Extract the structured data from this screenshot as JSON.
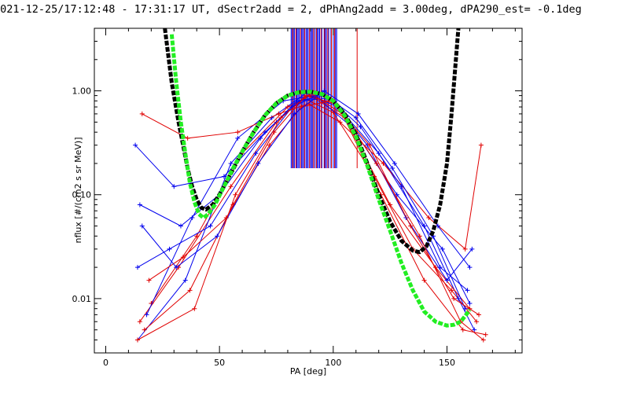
{
  "chart_data": {
    "type": "line",
    "title": "2021-12-25/17:12:48 - 17:31:17 UT, dSectr2add = 2, dPhAng2add = 3.00deg, dPA290_est=  -0.1deg",
    "xlabel": "PA [deg]",
    "ylabel": "nflux [#/(cm2 s sr MeV)]",
    "xlim": [
      -5,
      183
    ],
    "ylim": [
      0.003,
      4.0
    ],
    "yscale": "log",
    "grid": false,
    "x_ticks": [
      {
        "value": 0,
        "label": "0"
      },
      {
        "value": 50,
        "label": "50"
      },
      {
        "value": 100,
        "label": "100"
      },
      {
        "value": 150,
        "label": "150"
      }
    ],
    "y_ticks": [
      {
        "value": 0.01,
        "label": "0.01"
      },
      {
        "value": 0.1,
        "label": "0.10"
      },
      {
        "value": 1.0,
        "label": "1.00"
      }
    ],
    "colors": {
      "red": "#e00000",
      "blue": "#0000ee",
      "black": "#000000",
      "green": "#22ee22"
    },
    "series": [
      {
        "color": "red",
        "style": "line+plus",
        "x": [
          15,
          32,
          55,
          75,
          87,
          100,
          118,
          135,
          152,
          163
        ],
        "y": [
          0.006,
          0.02,
          0.12,
          0.5,
          0.85,
          0.62,
          0.15,
          0.03,
          0.012,
          0.006
        ]
      },
      {
        "color": "blue",
        "style": "line+plus",
        "x": [
          14,
          35,
          55,
          73,
          88,
          102,
          120,
          140,
          155,
          162
        ],
        "y": [
          0.004,
          0.015,
          0.2,
          0.55,
          0.95,
          0.7,
          0.25,
          0.05,
          0.01,
          0.005
        ]
      },
      {
        "color": "red",
        "style": "line+plus",
        "x": [
          20,
          40,
          60,
          80,
          90,
          105,
          125,
          145,
          160
        ],
        "y": [
          0.009,
          0.04,
          0.25,
          0.7,
          0.9,
          0.55,
          0.08,
          0.02,
          0.008
        ]
      },
      {
        "color": "blue",
        "style": "line+plus",
        "x": [
          18,
          38,
          58,
          78,
          92,
          108,
          128,
          148,
          160
        ],
        "y": [
          0.007,
          0.06,
          0.35,
          0.8,
          0.9,
          0.45,
          0.1,
          0.03,
          0.009
        ]
      },
      {
        "color": "blue",
        "style": "line+plus",
        "x": [
          13,
          30,
          52,
          70,
          85,
          98,
          115,
          132,
          150,
          161
        ],
        "y": [
          0.3,
          0.12,
          0.15,
          0.4,
          0.8,
          0.85,
          0.3,
          0.06,
          0.015,
          0.03
        ]
      },
      {
        "color": "red",
        "style": "line+plus",
        "x": [
          16,
          36,
          58,
          76,
          89,
          103,
          122,
          142,
          158,
          165
        ],
        "y": [
          0.6,
          0.35,
          0.4,
          0.6,
          0.75,
          0.5,
          0.2,
          0.06,
          0.03,
          0.3
        ]
      },
      {
        "color": "blue",
        "style": "line+plus",
        "x": [
          15,
          33,
          50,
          68,
          84,
          97,
          112,
          130,
          147,
          159
        ],
        "y": [
          0.08,
          0.05,
          0.1,
          0.35,
          0.8,
          0.9,
          0.45,
          0.12,
          0.02,
          0.012
        ]
      },
      {
        "color": "red",
        "style": "line+plus",
        "x": [
          17,
          37,
          56,
          74,
          88,
          101,
          119,
          138,
          156,
          166
        ],
        "y": [
          0.005,
          0.012,
          0.08,
          0.4,
          0.9,
          0.75,
          0.2,
          0.04,
          0.006,
          0.004
        ]
      },
      {
        "color": "blue",
        "style": "line+plus",
        "x": [
          14,
          28,
          46,
          66,
          82,
          95,
          110,
          126,
          144,
          158
        ],
        "y": [
          0.02,
          0.03,
          0.05,
          0.25,
          0.7,
          0.95,
          0.55,
          0.18,
          0.04,
          0.008
        ]
      },
      {
        "color": "red",
        "style": "line+plus",
        "x": [
          19,
          34,
          53,
          72,
          86,
          99,
          116,
          134,
          153,
          164
        ],
        "y": [
          0.015,
          0.025,
          0.06,
          0.3,
          0.7,
          0.8,
          0.3,
          0.05,
          0.01,
          0.007
        ]
      },
      {
        "color": "blue",
        "style": "line+plus",
        "x": [
          16,
          31,
          49,
          67,
          83,
          96,
          111,
          127,
          146,
          160
        ],
        "y": [
          0.05,
          0.02,
          0.04,
          0.2,
          0.6,
          1.0,
          0.6,
          0.2,
          0.05,
          0.02
        ]
      },
      {
        "color": "red",
        "style": "line+plus",
        "x": [
          14,
          39,
          57,
          77,
          90,
          104,
          121,
          140,
          157,
          167
        ],
        "y": [
          0.004,
          0.008,
          0.1,
          0.55,
          0.95,
          0.6,
          0.1,
          0.015,
          0.005,
          0.0045
        ]
      },
      {
        "color": "black",
        "style": "dashed-fit",
        "x": [
          26,
          29,
          32,
          34,
          36,
          38,
          40,
          42,
          44,
          47,
          50,
          55,
          60,
          65,
          70,
          75,
          80,
          85,
          90,
          95,
          100,
          105,
          110,
          115,
          120,
          125,
          130,
          135,
          138,
          141,
          144,
          147,
          150,
          152,
          155
        ],
        "y": [
          4.0,
          1.2,
          0.5,
          0.3,
          0.18,
          0.12,
          0.09,
          0.075,
          0.072,
          0.08,
          0.1,
          0.16,
          0.26,
          0.4,
          0.58,
          0.76,
          0.9,
          0.97,
          0.98,
          0.93,
          0.8,
          0.6,
          0.38,
          0.2,
          0.1,
          0.055,
          0.036,
          0.029,
          0.028,
          0.032,
          0.045,
          0.08,
          0.2,
          0.6,
          4.0
        ]
      },
      {
        "color": "green",
        "style": "dashed-fit",
        "x": [
          29,
          31,
          33,
          35,
          37,
          39,
          41,
          43,
          45,
          48,
          52,
          56,
          60,
          65,
          70,
          75,
          80,
          85,
          90,
          95,
          100,
          105,
          110,
          115,
          120,
          125,
          130,
          135,
          140,
          145,
          150,
          153,
          156,
          158,
          160
        ],
        "y": [
          3.5,
          1.2,
          0.5,
          0.25,
          0.13,
          0.085,
          0.065,
          0.06,
          0.065,
          0.08,
          0.12,
          0.18,
          0.26,
          0.4,
          0.58,
          0.76,
          0.9,
          0.97,
          0.98,
          0.93,
          0.8,
          0.58,
          0.36,
          0.19,
          0.09,
          0.045,
          0.022,
          0.012,
          0.0075,
          0.006,
          0.0055,
          0.0056,
          0.006,
          0.0068,
          0.0078
        ]
      }
    ],
    "vertical_marks": {
      "y_from": 0.18,
      "y_to": 4.0,
      "blue_x": [
        81.5,
        82,
        82.5,
        83,
        84,
        84.5,
        85,
        86,
        86.5,
        87,
        88,
        88.5,
        89,
        90,
        90.5,
        91,
        92,
        93,
        93.5,
        94,
        95,
        96,
        96.5,
        97,
        98,
        99,
        100,
        101,
        101.5
      ],
      "red_x": [
        82.2,
        83.6,
        85.6,
        87.4,
        89.6,
        91.4,
        92.6,
        94.6,
        96.2,
        97.6,
        99.2,
        100.6,
        110.5
      ]
    }
  }
}
